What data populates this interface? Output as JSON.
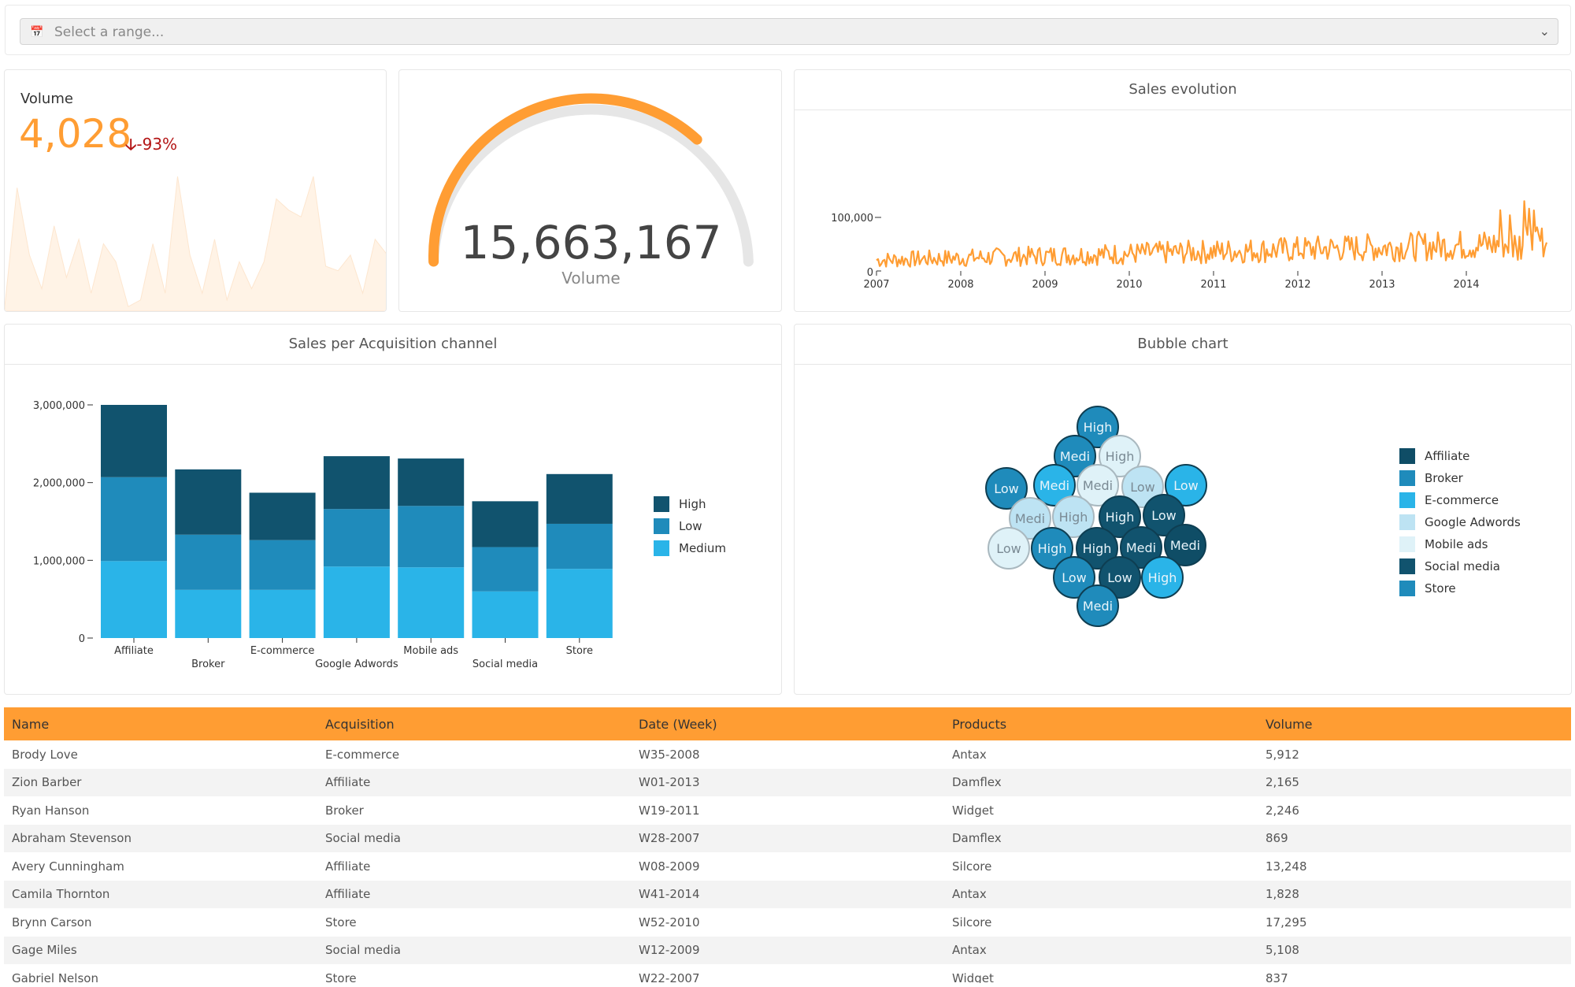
{
  "range": {
    "placeholder": "Select a range...",
    "calendar_icon": "calendar-icon",
    "chevron_icon": "chevron-down-icon"
  },
  "kpi": {
    "label": "Volume",
    "value": "4,028",
    "change": "-93%",
    "value_color": "#ff9d33",
    "change_color": "#b31515"
  },
  "gauge": {
    "value": "15,663,167",
    "label": "Volume",
    "fill_fraction": 0.73,
    "color": "#ff9d33"
  },
  "sales_evolution": {
    "title": "Sales evolution"
  },
  "acquisition": {
    "title": "Sales per Acquisition channel"
  },
  "bubble": {
    "title": "Bubble chart"
  },
  "chart_data": [
    {
      "type": "area",
      "title": "",
      "values": [
        2,
        55,
        25,
        10,
        38,
        15,
        32,
        8,
        30,
        22,
        2,
        5,
        30,
        8,
        60,
        25,
        8,
        32,
        5,
        22,
        10,
        22,
        50,
        45,
        42,
        60,
        20,
        18,
        25,
        8,
        32,
        25
      ]
    },
    {
      "type": "line",
      "title": "Sales evolution",
      "x": [
        "2007",
        "2008",
        "2009",
        "2010",
        "2011",
        "2012",
        "2013",
        "2014"
      ],
      "yticks": [
        "0",
        "100,000"
      ],
      "ylim": [
        0,
        140000
      ],
      "series_color": "#ff9d33"
    },
    {
      "type": "bar",
      "title": "Sales per Acquisition channel",
      "categories": [
        "Affiliate",
        "Broker",
        "E-commerce",
        "Google Adwords",
        "Mobile ads",
        "Social media",
        "Store"
      ],
      "series": [
        {
          "name": "Medium",
          "values": [
            990000,
            620000,
            620000,
            920000,
            910000,
            600000,
            890000
          ],
          "color": "#2ab4e8"
        },
        {
          "name": "Low",
          "values": [
            1080000,
            710000,
            640000,
            740000,
            790000,
            570000,
            580000
          ],
          "color": "#1f8bbb"
        },
        {
          "name": "High",
          "values": [
            930000,
            840000,
            610000,
            680000,
            610000,
            590000,
            640000
          ],
          "color": "#11536e"
        }
      ],
      "yticks": [
        "0",
        "1,000,000",
        "2,000,000",
        "3,000,000"
      ],
      "ylim": [
        0,
        3000000
      ],
      "legend": [
        "High",
        "Low",
        "Medium"
      ]
    },
    {
      "type": "scatter",
      "title": "Bubble chart",
      "legend": [
        {
          "name": "Affiliate",
          "color": "#0f4d66"
        },
        {
          "name": "Broker",
          "color": "#1f8bbb"
        },
        {
          "name": "E-commerce",
          "color": "#2ab4e8"
        },
        {
          "name": "Google Adwords",
          "color": "#bde3f3"
        },
        {
          "name": "Mobile ads",
          "color": "#dff2f8"
        },
        {
          "name": "Social media",
          "color": "#11536e"
        },
        {
          "name": "Store",
          "color": "#1f8bbb"
        }
      ],
      "bubbles": [
        {
          "label": "High",
          "color": "#1f8bbb"
        },
        {
          "label": "Medi",
          "color": "#1f8bbb"
        },
        {
          "label": "High",
          "color": "#dff2f8"
        },
        {
          "label": "Low",
          "color": "#1f8bbb"
        },
        {
          "label": "Medi",
          "color": "#2ab4e8"
        },
        {
          "label": "Medi",
          "color": "#dff2f8"
        },
        {
          "label": "Low",
          "color": "#bde3f3"
        },
        {
          "label": "Low",
          "color": "#2ab4e8"
        },
        {
          "label": "Medi",
          "color": "#bde3f3"
        },
        {
          "label": "High",
          "color": "#bde3f3"
        },
        {
          "label": "High",
          "color": "#11536e"
        },
        {
          "label": "Low",
          "color": "#11536e"
        },
        {
          "label": "Low",
          "color": "#dff2f8"
        },
        {
          "label": "High",
          "color": "#1f8bbb"
        },
        {
          "label": "High",
          "color": "#11536e"
        },
        {
          "label": "Medi",
          "color": "#11536e"
        },
        {
          "label": "Medi",
          "color": "#0f4d66"
        },
        {
          "label": "Low",
          "color": "#1f8bbb"
        },
        {
          "label": "Low",
          "color": "#11536e"
        },
        {
          "label": "High",
          "color": "#2ab4e8"
        },
        {
          "label": "Medi",
          "color": "#1f8bbb"
        }
      ]
    }
  ],
  "table": {
    "columns": [
      "Name",
      "Acquisition",
      "Date (Week)",
      "Products",
      "Volume"
    ],
    "rows": [
      [
        "Brody Love",
        "E-commerce",
        "W35-2008",
        "Antax",
        "5,912"
      ],
      [
        "Zion Barber",
        "Affiliate",
        "W01-2013",
        "Damflex",
        "2,165"
      ],
      [
        "Ryan Hanson",
        "Broker",
        "W19-2011",
        "Widget",
        "2,246"
      ],
      [
        "Abraham Stevenson",
        "Social media",
        "W28-2007",
        "Damflex",
        "869"
      ],
      [
        "Avery Cunningham",
        "Affiliate",
        "W08-2009",
        "Silcore",
        "13,248"
      ],
      [
        "Camila Thornton",
        "Affiliate",
        "W41-2014",
        "Antax",
        "1,828"
      ],
      [
        "Brynn Carson",
        "Store",
        "W52-2010",
        "Silcore",
        "17,295"
      ],
      [
        "Gage Miles",
        "Social media",
        "W12-2009",
        "Antax",
        "5,108"
      ],
      [
        "Gabriel Nelson",
        "Store",
        "W22-2007",
        "Widget",
        "837"
      ]
    ]
  }
}
